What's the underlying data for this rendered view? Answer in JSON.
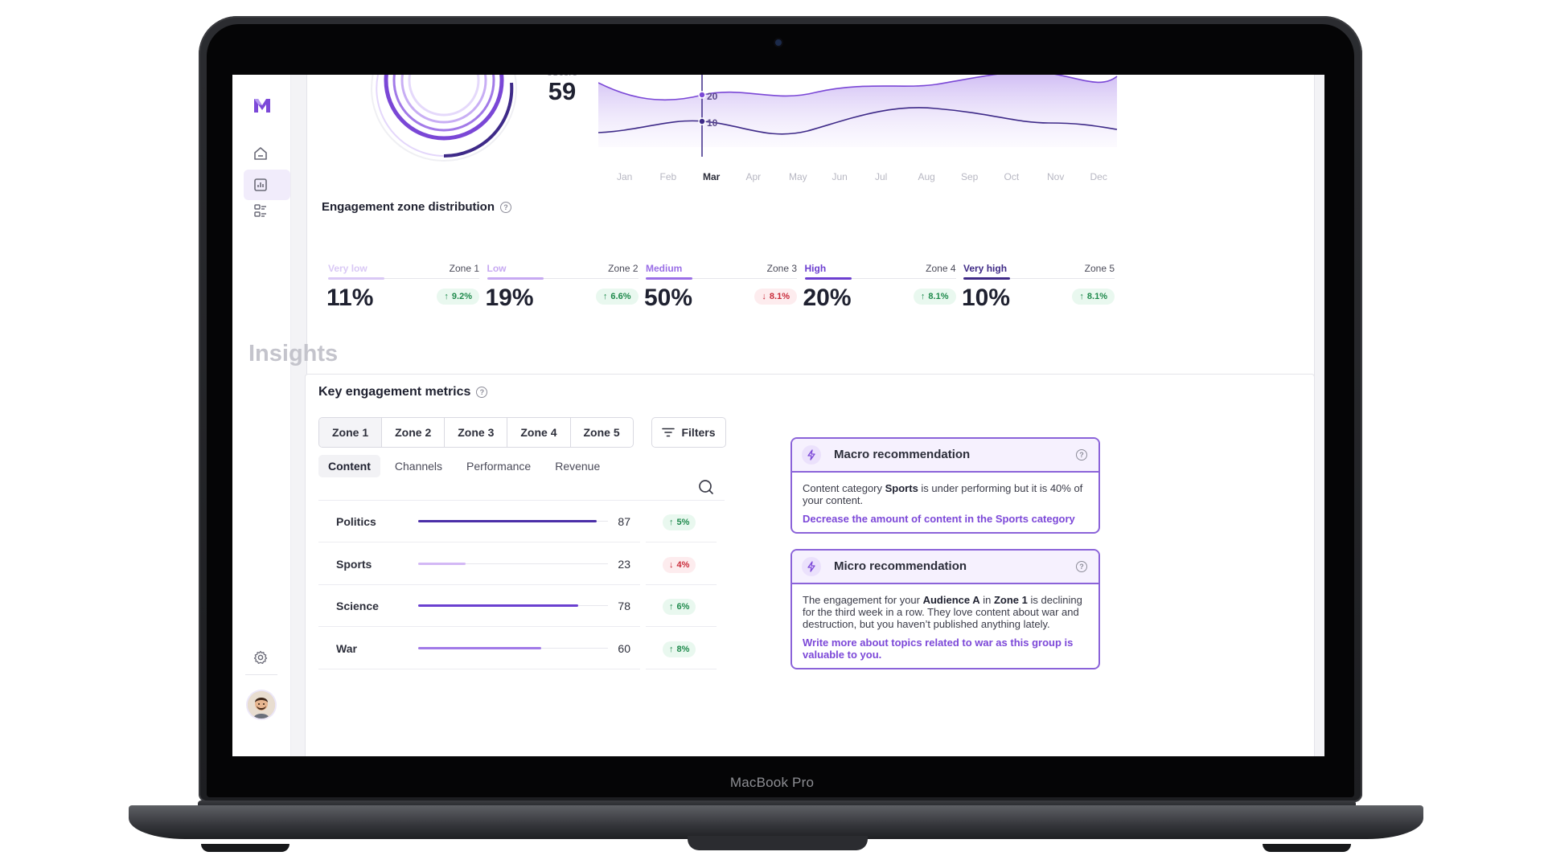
{
  "device": {
    "label": "MacBook Pro"
  },
  "escore": {
    "label": "eScore",
    "value": "59"
  },
  "trend_chart": {
    "months": [
      "Jan",
      "Feb",
      "Mar",
      "Apr",
      "May",
      "Jun",
      "Jul",
      "Aug",
      "Sep",
      "Oct",
      "Nov",
      "Dec"
    ],
    "active_month": "Mar",
    "marker_labels": [
      "20",
      "10"
    ]
  },
  "zones_section": {
    "title": "Engagement zone distribution",
    "help_glyph": "?",
    "zones": [
      {
        "name": "Very low",
        "zone": "Zone 1",
        "pct": "11%",
        "change": "9.2%",
        "direction": "up",
        "color": "#d9c8f5"
      },
      {
        "name": "Low",
        "zone": "Zone 2",
        "pct": "19%",
        "change": "6.6%",
        "direction": "up",
        "color": "#c7a9f2"
      },
      {
        "name": "Medium",
        "zone": "Zone 3",
        "pct": "50%",
        "change": "8.1%",
        "direction": "down",
        "color": "#9a6ee6"
      },
      {
        "name": "High",
        "zone": "Zone 4",
        "pct": "20%",
        "change": "8.1%",
        "direction": "up",
        "color": "#6d3fd0"
      },
      {
        "name": "Very high",
        "zone": "Zone 5",
        "pct": "10%",
        "change": "8.1%",
        "direction": "up",
        "color": "#3f2a86"
      }
    ]
  },
  "insights": {
    "heading": "Insights"
  },
  "metrics": {
    "title": "Key engagement metrics",
    "help_glyph": "?",
    "zone_tabs": [
      "Zone 1",
      "Zone 2",
      "Zone 3",
      "Zone 4",
      "Zone 5"
    ],
    "active_zone_tab": "Zone 1",
    "filters_label": "Filters",
    "sub_tabs": [
      "Content",
      "Channels",
      "Performance",
      "Revenue"
    ],
    "active_sub_tab": "Content",
    "rows": [
      {
        "label": "Politics",
        "value": 87,
        "change": "5%",
        "direction": "up",
        "color": "#4b2fa8"
      },
      {
        "label": "Sports",
        "value": 23,
        "change": "4%",
        "direction": "down",
        "color": "#d3b8f5"
      },
      {
        "label": "Science",
        "value": 78,
        "change": "6%",
        "direction": "up",
        "color": "#6a3fd0"
      },
      {
        "label": "War",
        "value": 60,
        "change": "8%",
        "direction": "up",
        "color": "#a17ae8"
      }
    ]
  },
  "macro": {
    "title": "Macro recommendation",
    "help_glyph": "?",
    "text_1": "Content category ",
    "bold_1": "Sports",
    "text_2": " is under performing but it is 40% of your content.",
    "action": "Decrease the amount of content in the Sports category"
  },
  "micro": {
    "title": "Micro recommendation",
    "help_glyph": "?",
    "text_1": "The engagement for your ",
    "bold_1": "Audience A",
    "text_2": " in ",
    "bold_2": "Zone 1",
    "text_3": " is declining for the third week in a row. They love content about war and destruction, but you haven’t published anything lately.",
    "action": "Write more about topics related to war as this group is valuable to you."
  },
  "arrows": {
    "up": "↑",
    "down": "↓"
  },
  "colors": {
    "accent": "#7c48d8",
    "positive": "#1f8a4c",
    "negative": "#c92b3a"
  },
  "icons": [
    "logo-icon",
    "home-icon",
    "analytics-icon",
    "audience-icon",
    "settings-icon",
    "search-icon",
    "filter-icon",
    "bolt-icon"
  ]
}
